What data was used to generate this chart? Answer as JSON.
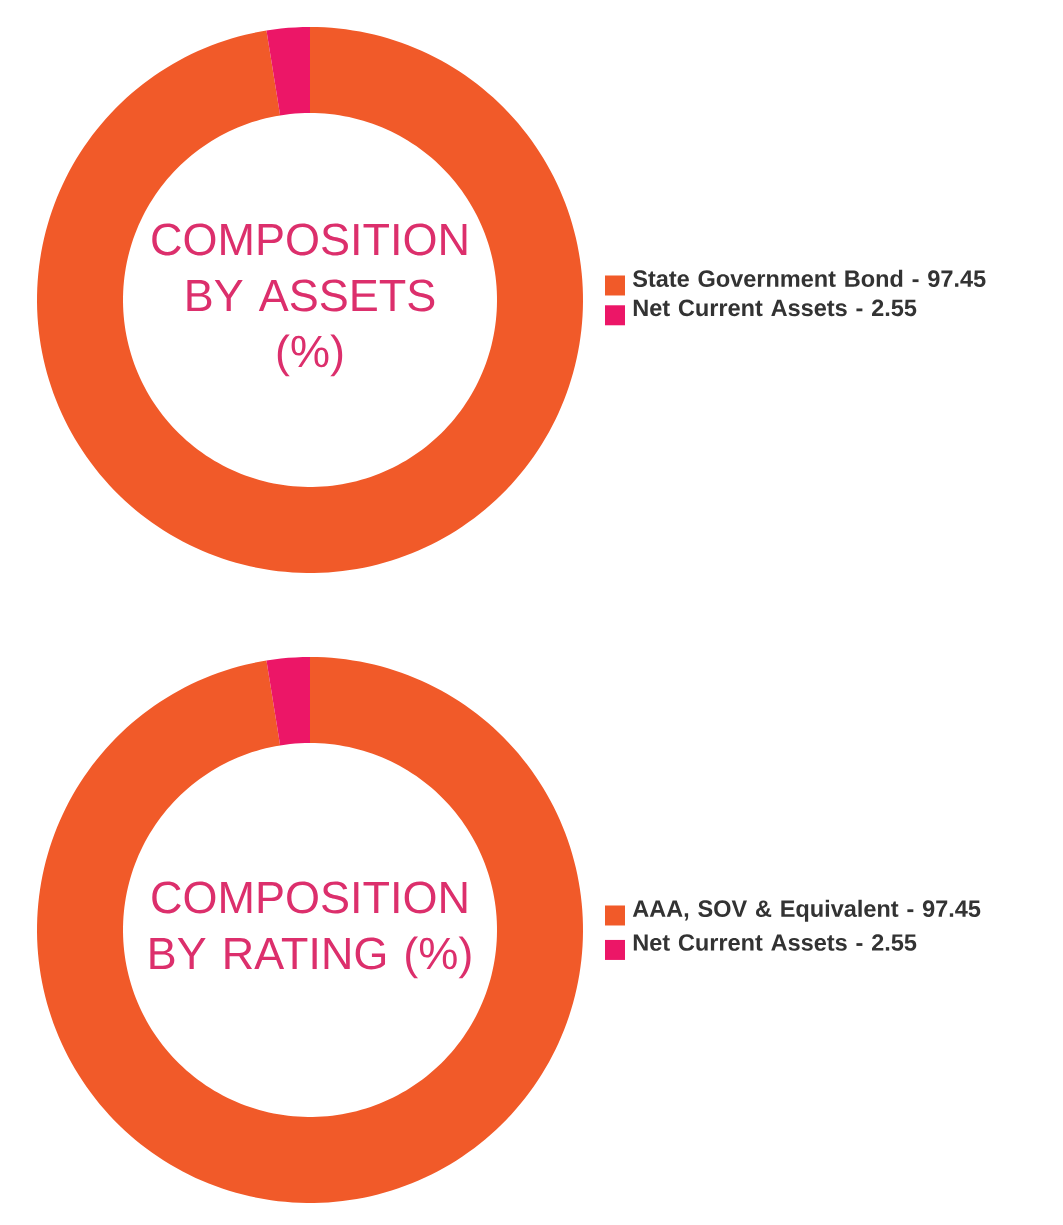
{
  "chart_data": [
    {
      "type": "donut",
      "title": "COMPOSITION BY ASSETS (%)",
      "categories": [
        "State Government Bond - 97.45",
        "Net Current Assets - 2.55"
      ],
      "values": [
        97.45,
        2.55
      ],
      "colors": [
        "#f15a29",
        "#ec1667"
      ],
      "legend": "right"
    },
    {
      "type": "donut",
      "title": "COMPOSITION BY RATING (%)",
      "categories": [
        "AAA, SOV & Equivalent - 97.45",
        "Net Current Assets - 2.55"
      ],
      "values": [
        97.45,
        2.55
      ],
      "colors": [
        "#f15a29",
        "#ec1667"
      ],
      "legend": "right"
    }
  ]
}
